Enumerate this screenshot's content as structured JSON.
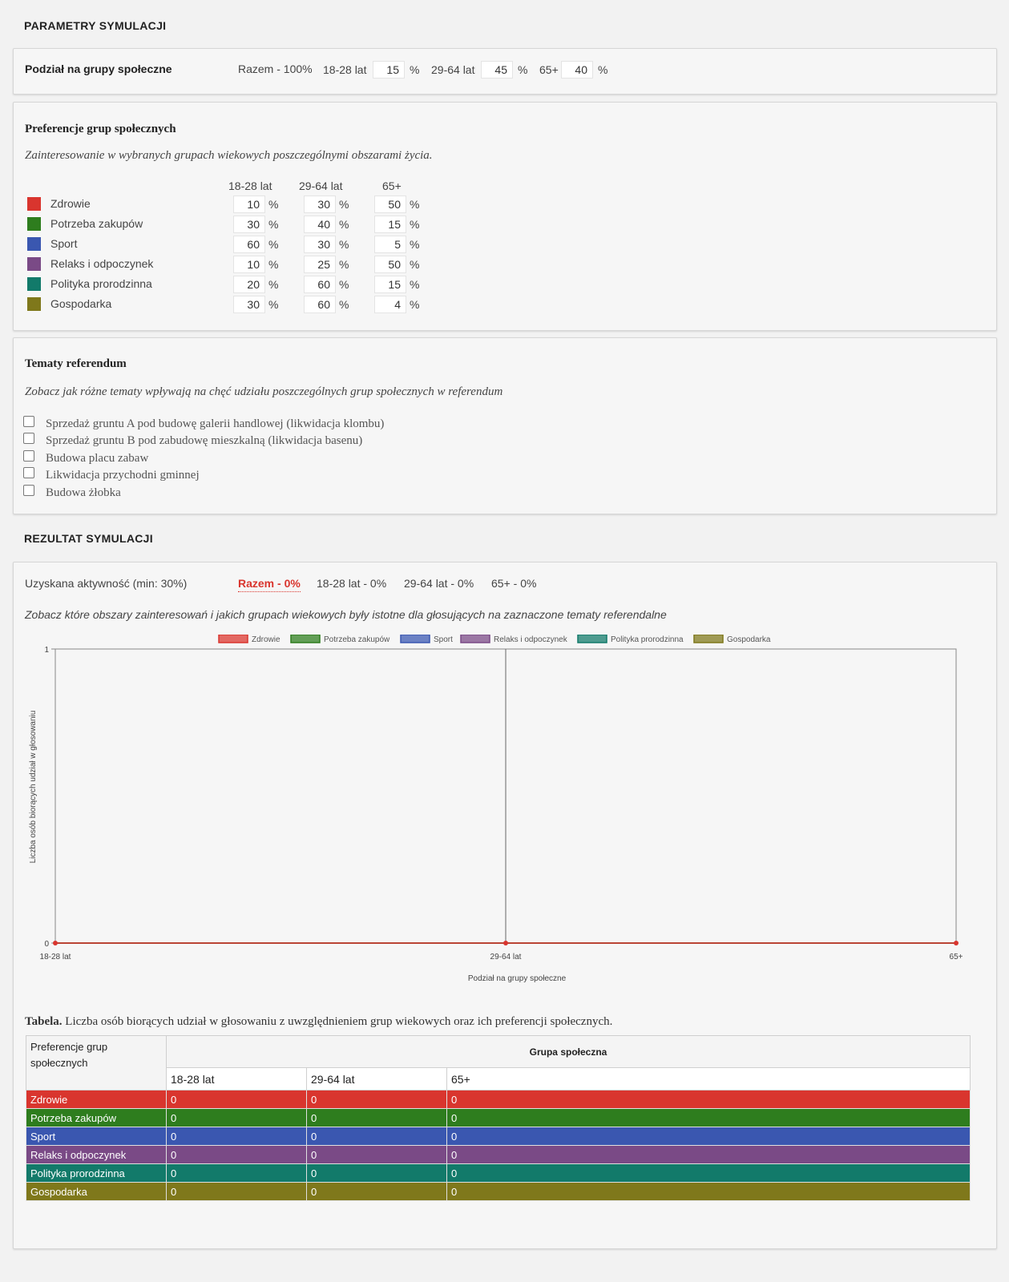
{
  "params": {
    "section_title": "PARAMETRY SYMULACJI",
    "groups_label": "Podział na grupy społeczne",
    "total_label": "Razem - 100%",
    "pct": "%",
    "groups": [
      {
        "label": "18-28 lat",
        "value": "15"
      },
      {
        "label": "29-64 lat",
        "value": "45"
      },
      {
        "label": "65+",
        "value": "40"
      }
    ]
  },
  "prefs": {
    "title": "Preferencje grup społecznych",
    "description": "Zainteresowanie w wybranych grupach wiekowych poszczególnymi obszarami życia.",
    "columns": [
      "18-28 lat",
      "29-64 lat",
      "65+"
    ],
    "rows": [
      {
        "label": "Zdrowie",
        "color": "#d9352e",
        "values": [
          "10",
          "30",
          "50"
        ]
      },
      {
        "label": "Potrzeba zakupów",
        "color": "#2e7d1e",
        "values": [
          "30",
          "40",
          "15"
        ]
      },
      {
        "label": "Sport",
        "color": "#3a57b0",
        "values": [
          "60",
          "30",
          "5"
        ]
      },
      {
        "label": "Relaks i odpoczynek",
        "color": "#7a4a86",
        "values": [
          "10",
          "25",
          "50"
        ]
      },
      {
        "label": "Polityka prorodzinna",
        "color": "#127a6a",
        "values": [
          "20",
          "60",
          "15"
        ]
      },
      {
        "label": "Gospodarka",
        "color": "#7f781b",
        "values": [
          "30",
          "60",
          "4"
        ]
      }
    ]
  },
  "topics": {
    "title": "Tematy referendum",
    "description": "Zobacz jak różne tematy wpływają na chęć udziału poszczególnych grup społecznych w referendum",
    "items": [
      {
        "label": "Sprzedaż gruntu A pod budowę galerii handlowej (likwidacja klombu)",
        "checked": false
      },
      {
        "label": "Sprzedaż gruntu B pod zabudowę mieszkalną (likwidacja basenu)",
        "checked": false
      },
      {
        "label": "Budowa placu zabaw",
        "checked": false
      },
      {
        "label": "Likwidacja przychodni gminnej",
        "checked": false
      },
      {
        "label": "Budowa żłobka",
        "checked": false
      }
    ]
  },
  "results": {
    "section_title": "REZULTAT SYMULACJI",
    "activity_label": "Uzyskana aktywność (min: 30%)",
    "total": "Razem - 0%",
    "group_results": [
      "18-28 lat - 0%",
      "29-64 lat - 0%",
      "65+ - 0%"
    ],
    "description": "Zobacz które obszary zainteresowań i jakich grupach wiekowych były istotne dla głosujących na zaznaczone tematy referendalne",
    "accent_color": "#d9352e"
  },
  "chart_data": {
    "type": "line",
    "categories": [
      "18-28 lat",
      "29-64 lat",
      "65+"
    ],
    "series": [
      {
        "name": "Zdrowie",
        "color": "#d9352e",
        "values": [
          0,
          0,
          0
        ]
      },
      {
        "name": "Potrzeba zakupów",
        "color": "#2e7d1e",
        "values": [
          0,
          0,
          0
        ]
      },
      {
        "name": "Sport",
        "color": "#3a57b0",
        "values": [
          0,
          0,
          0
        ]
      },
      {
        "name": "Relaks i odpoczynek",
        "color": "#7a4a86",
        "values": [
          0,
          0,
          0
        ]
      },
      {
        "name": "Polityka prorodzinna",
        "color": "#127a6a",
        "values": [
          0,
          0,
          0
        ]
      },
      {
        "name": "Gospodarka",
        "color": "#7f781b",
        "values": [
          0,
          0,
          0
        ]
      }
    ],
    "ylim": [
      0,
      1
    ],
    "yticks": [
      "0",
      "1"
    ],
    "xlabel": "Podział na grupy społeczne",
    "ylabel": "Liczba osób biorących udział w głosowaniu",
    "legend": "top",
    "grid": true
  },
  "table": {
    "caption_bold": "Tabela.",
    "caption_text": "Liczba osób biorących udział w głosowaniu z uwzględnieniem grup wiekowych oraz ich preferencji społecznych.",
    "row_header": "Preferencje grup społecznych",
    "group_header": "Grupa społeczna",
    "columns": [
      "18-28 lat",
      "29-64 lat",
      "65+"
    ],
    "rows": [
      {
        "label": "Zdrowie",
        "color": "#d9352e",
        "values": [
          "0",
          "0",
          "0"
        ]
      },
      {
        "label": "Potrzeba zakupów",
        "color": "#2e7d1e",
        "values": [
          "0",
          "0",
          "0"
        ]
      },
      {
        "label": "Sport",
        "color": "#3a57b0",
        "values": [
          "0",
          "0",
          "0"
        ]
      },
      {
        "label": "Relaks i odpoczynek",
        "color": "#7a4a86",
        "values": [
          "0",
          "0",
          "0"
        ]
      },
      {
        "label": "Polityka prorodzinna",
        "color": "#127a6a",
        "values": [
          "0",
          "0",
          "0"
        ]
      },
      {
        "label": "Gospodarka",
        "color": "#7f781b",
        "values": [
          "0",
          "0",
          "0"
        ]
      }
    ]
  }
}
